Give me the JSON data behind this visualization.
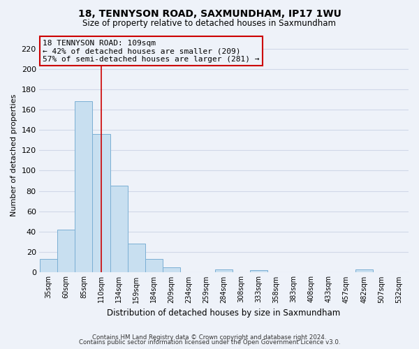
{
  "title": "18, TENNYSON ROAD, SAXMUNDHAM, IP17 1WU",
  "subtitle": "Size of property relative to detached houses in Saxmundham",
  "xlabel": "Distribution of detached houses by size in Saxmundham",
  "ylabel": "Number of detached properties",
  "bar_color": "#c8dff0",
  "bar_edge_color": "#7bafd4",
  "background_color": "#eef2f9",
  "grid_color": "#d0d8e8",
  "bin_labels": [
    "35sqm",
    "60sqm",
    "85sqm",
    "110sqm",
    "134sqm",
    "159sqm",
    "184sqm",
    "209sqm",
    "234sqm",
    "259sqm",
    "284sqm",
    "308sqm",
    "333sqm",
    "358sqm",
    "383sqm",
    "408sqm",
    "433sqm",
    "457sqm",
    "482sqm",
    "507sqm",
    "532sqm"
  ],
  "bar_heights": [
    13,
    42,
    168,
    136,
    85,
    28,
    13,
    5,
    0,
    0,
    3,
    0,
    2,
    0,
    0,
    0,
    0,
    0,
    3,
    0,
    0
  ],
  "ylim": [
    0,
    230
  ],
  "yticks": [
    0,
    20,
    40,
    60,
    80,
    100,
    120,
    140,
    160,
    180,
    200,
    220
  ],
  "vline_x_index": 3,
  "vline_color": "#cc0000",
  "annotation_title": "18 TENNYSON ROAD: 109sqm",
  "annotation_line1": "← 42% of detached houses are smaller (209)",
  "annotation_line2": "57% of semi-detached houses are larger (281) →",
  "annotation_box_edge": "#cc0000",
  "footer_line1": "Contains HM Land Registry data © Crown copyright and database right 2024.",
  "footer_line2": "Contains public sector information licensed under the Open Government Licence v3.0."
}
